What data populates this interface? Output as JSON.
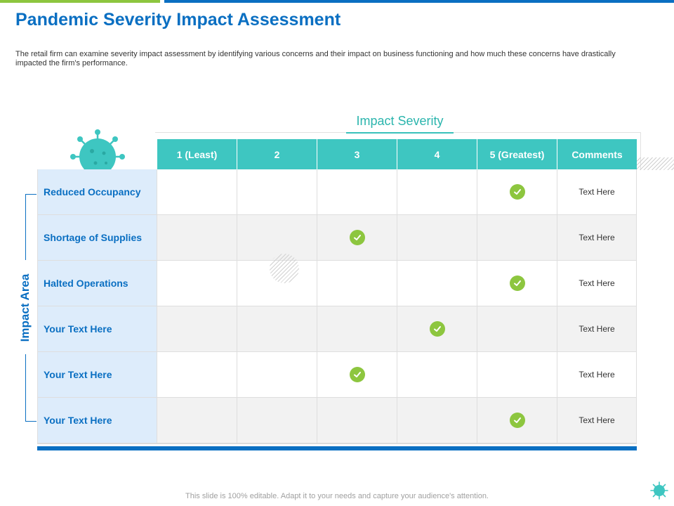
{
  "title": "Pandemic Severity Impact Assessment",
  "description": "The retail firm can examine severity impact assessment by identifying various concerns and their impact on business functioning and how much these concerns have drastically impacted the firm's performance.",
  "severity_label": "Impact Severity",
  "area_label": "Impact Area",
  "columns": [
    "1 (Least)",
    "2",
    "3",
    "4",
    "5 (Greatest)",
    "Comments"
  ],
  "rows": [
    {
      "area": "Reduced Occupancy",
      "severity": 5,
      "comment": "Text Here"
    },
    {
      "area": "Shortage of Supplies",
      "severity": 3,
      "comment": "Text Here"
    },
    {
      "area": "Halted Operations",
      "severity": 5,
      "comment": "Text Here"
    },
    {
      "area": "Your Text Here",
      "severity": 4,
      "comment": "Text Here"
    },
    {
      "area": "Your Text Here",
      "severity": 3,
      "comment": "Text Here"
    },
    {
      "area": "Your Text Here",
      "severity": 5,
      "comment": "Text Here"
    }
  ],
  "footer": "This slide is 100% editable. Adapt it to your needs and capture your audience's attention.",
  "colors": {
    "brand_blue": "#0a6fc2",
    "teal": "#3ec6c1",
    "check_green": "#8dc63f"
  },
  "icons": {
    "decor": "virus-icon",
    "check": "check-icon"
  }
}
